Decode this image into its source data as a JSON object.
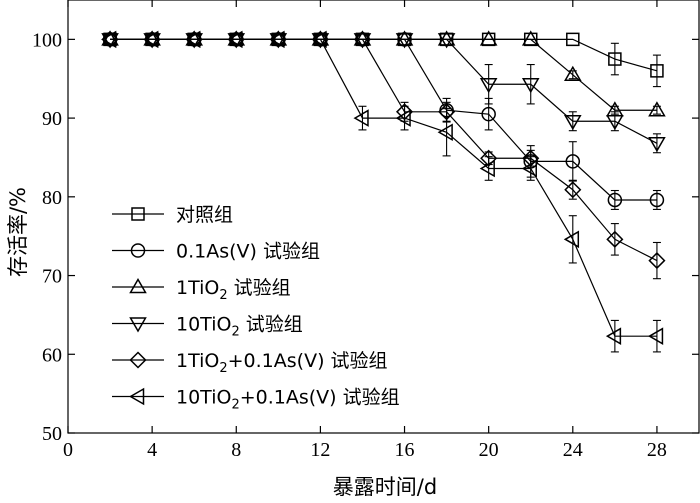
{
  "chart_data": {
    "type": "line",
    "xlabel": "暴露时间/d",
    "ylabel": "存活率/%",
    "xlim": [
      0,
      30
    ],
    "ylim": [
      50,
      105
    ],
    "xticks": [
      0,
      4,
      8,
      12,
      16,
      20,
      24,
      28
    ],
    "yticks": [
      50,
      60,
      70,
      80,
      90,
      100
    ],
    "grid": false,
    "legend_position": "lower-left",
    "series": [
      {
        "name": "对照组",
        "marker": "square",
        "x": [
          2,
          4,
          6,
          8,
          10,
          12,
          14,
          16,
          18,
          20,
          22,
          24,
          26,
          28
        ],
        "y": [
          100,
          100,
          100,
          100,
          100,
          100,
          100,
          100,
          100,
          100,
          100,
          100,
          97.5,
          96
        ],
        "err": [
          0,
          0,
          0,
          0,
          0,
          0,
          0,
          0,
          0,
          0,
          0,
          0,
          2,
          2
        ]
      },
      {
        "name": "0.1As(V) 试验组",
        "marker": "circle",
        "x": [
          2,
          4,
          6,
          8,
          10,
          12,
          14,
          16,
          18,
          20,
          22,
          24,
          26,
          28
        ],
        "y": [
          100,
          100,
          100,
          100,
          100,
          100,
          100,
          100,
          91,
          90.5,
          84.5,
          84.5,
          79.6,
          79.6
        ],
        "err": [
          0,
          0,
          0,
          0,
          0,
          0,
          0,
          0,
          1.5,
          2,
          2,
          2.5,
          1.2,
          1.2
        ]
      },
      {
        "name": "1TiO2 试验组",
        "marker": "triangle-up",
        "x": [
          2,
          4,
          6,
          8,
          10,
          12,
          14,
          16,
          18,
          20,
          22,
          24,
          26,
          28
        ],
        "y": [
          100,
          100,
          100,
          100,
          100,
          100,
          100,
          100,
          100,
          100,
          100,
          95.5,
          91,
          91
        ],
        "err": [
          0,
          0,
          0,
          0,
          0,
          0,
          0,
          0,
          0,
          0,
          0,
          0.5,
          0.5,
          0.5
        ]
      },
      {
        "name": "10TiO2 试验组",
        "marker": "triangle-down",
        "x": [
          2,
          4,
          6,
          8,
          10,
          12,
          14,
          16,
          18,
          20,
          22,
          24,
          26,
          28
        ],
        "y": [
          100,
          100,
          100,
          100,
          100,
          100,
          100,
          100,
          100,
          94.3,
          94.3,
          89.6,
          89.6,
          86.8
        ],
        "err": [
          0,
          0,
          0,
          0,
          0,
          0,
          0,
          0,
          0,
          2.5,
          2.5,
          1.2,
          1.2,
          1.2
        ]
      },
      {
        "name": "1TiO2+0.1As(V) 试验组",
        "marker": "diamond",
        "x": [
          2,
          4,
          6,
          8,
          10,
          12,
          14,
          16,
          18,
          20,
          22,
          24,
          26,
          28
        ],
        "y": [
          100,
          100,
          100,
          100,
          100,
          100,
          100,
          90.8,
          90.8,
          84.9,
          84.9,
          80.9,
          74.6,
          71.9
        ],
        "err": [
          0,
          0,
          0,
          0,
          0,
          0,
          0,
          1.2,
          1.2,
          0.8,
          1,
          1.2,
          2,
          2.3
        ]
      },
      {
        "name": "10TiO2+0.1As(V) 试验组",
        "marker": "triangle-left",
        "x": [
          2,
          4,
          6,
          8,
          10,
          12,
          14,
          16,
          18,
          20,
          22,
          24,
          26,
          28
        ],
        "y": [
          100,
          100,
          100,
          100,
          100,
          100,
          90,
          90,
          88.2,
          83.6,
          83.6,
          74.6,
          62.3,
          62.3
        ],
        "err": [
          0,
          0,
          0,
          0,
          0,
          0,
          1.5,
          1.5,
          3,
          1.5,
          1.5,
          3,
          2,
          2
        ]
      }
    ],
    "legend_entries": [
      {
        "pre": "对照组",
        "sub": "",
        "post": ""
      },
      {
        "pre": "0.1As(V) 试验组",
        "sub": "",
        "post": ""
      },
      {
        "pre": "1TiO",
        "sub": "2",
        "post": " 试验组"
      },
      {
        "pre": "10TiO",
        "sub": "2",
        "post": " 试验组"
      },
      {
        "pre": "1TiO",
        "sub": "2",
        "post": "+0.1As(V) 试验组"
      },
      {
        "pre": "10TiO",
        "sub": "2",
        "post": "+0.1As(V) 试验组"
      }
    ]
  }
}
